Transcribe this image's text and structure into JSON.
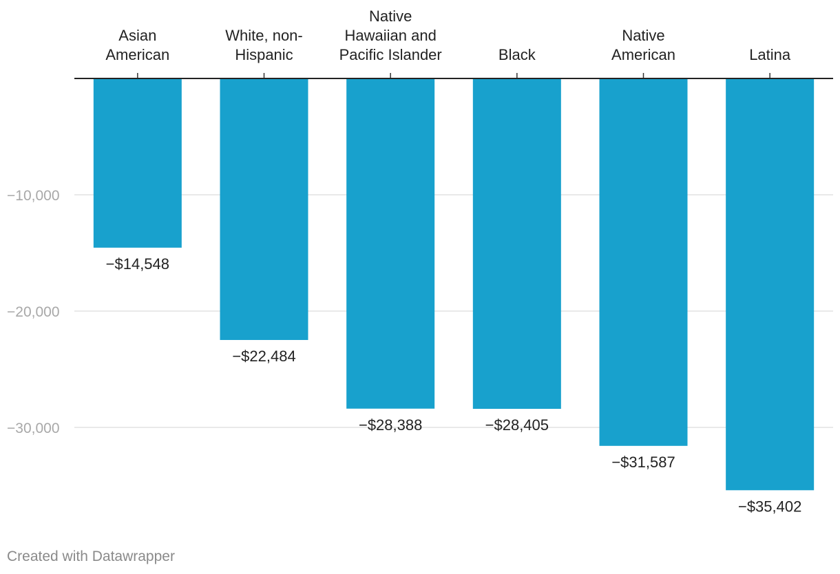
{
  "chart_data": {
    "type": "bar",
    "categories": [
      [
        "Asian",
        "American"
      ],
      [
        "White, non-",
        "Hispanic"
      ],
      [
        "Native",
        "Hawaiian and",
        "Pacific Islander"
      ],
      [
        "Black"
      ],
      [
        "Native",
        "American"
      ],
      [
        "Latina"
      ]
    ],
    "values": [
      -14548,
      -22484,
      -28388,
      -28405,
      -31587,
      -35402
    ],
    "value_labels": [
      "−$14,548",
      "−$22,484",
      "−$28,388",
      "−$28,405",
      "−$31,587",
      "−$35,402"
    ],
    "y_ticks": [
      -10000,
      -20000,
      -30000
    ],
    "y_tick_labels": [
      "−10,000",
      "−20,000",
      "−30,000"
    ],
    "ylim": [
      -38000,
      0
    ],
    "category_axis_position": "top",
    "grid": true,
    "bar_color": "#18a1cd"
  },
  "credit": "Created with Datawrapper"
}
